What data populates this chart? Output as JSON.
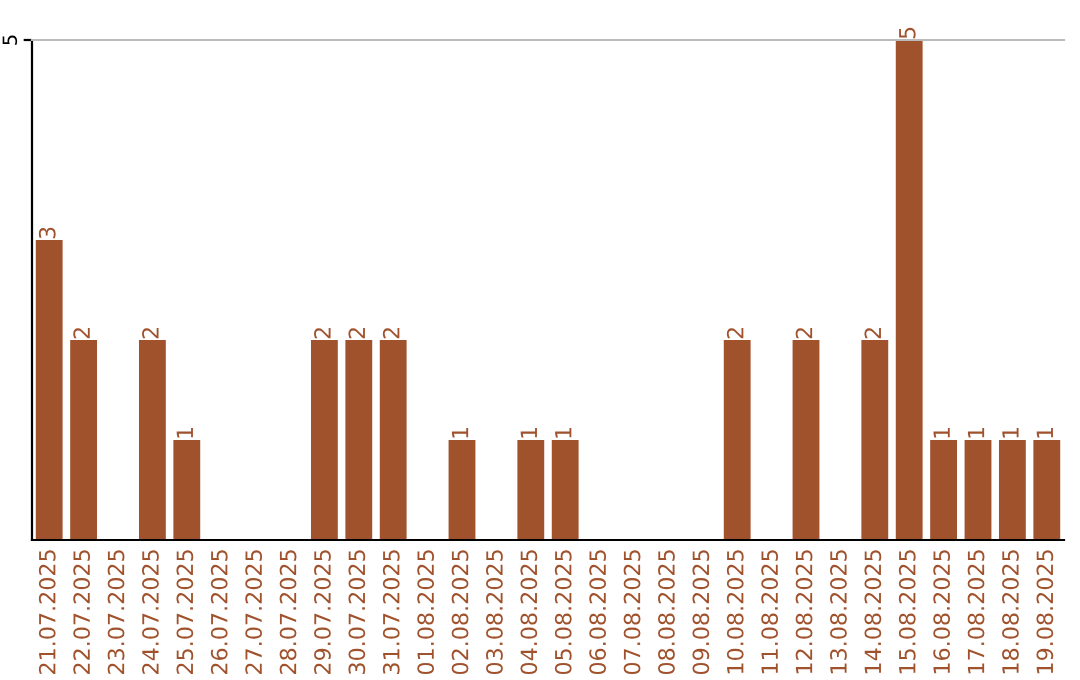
{
  "chart_data": {
    "type": "bar",
    "categories": [
      "21.07.2025",
      "22.07.2025",
      "23.07.2025",
      "24.07.2025",
      "25.07.2025",
      "26.07.2025",
      "27.07.2025",
      "28.07.2025",
      "29.07.2025",
      "30.07.2025",
      "31.07.2025",
      "01.08.2025",
      "02.08.2025",
      "03.08.2025",
      "04.08.2025",
      "05.08.2025",
      "06.08.2025",
      "07.08.2025",
      "08.08.2025",
      "09.08.2025",
      "10.08.2025",
      "11.08.2025",
      "12.08.2025",
      "13.08.2025",
      "14.08.2025",
      "15.08.2025",
      "16.08.2025",
      "17.08.2025",
      "18.08.2025",
      "19.08.2025"
    ],
    "values": [
      3,
      2,
      0,
      2,
      1,
      0,
      0,
      0,
      2,
      2,
      2,
      0,
      1,
      0,
      1,
      1,
      0,
      0,
      0,
      0,
      2,
      0,
      2,
      0,
      2,
      5,
      1,
      1,
      1,
      1
    ],
    "value_labels": [
      "3",
      "2",
      null,
      "2",
      "1",
      null,
      null,
      null,
      "2",
      "2",
      "2",
      null,
      "1",
      null,
      "1",
      "1",
      null,
      null,
      null,
      null,
      "2",
      null,
      "2",
      null,
      "2",
      "5",
      "1",
      "1",
      "1",
      "1"
    ],
    "color": "#a0522d",
    "ylim": [
      0,
      5
    ],
    "yticks": [
      5
    ]
  }
}
